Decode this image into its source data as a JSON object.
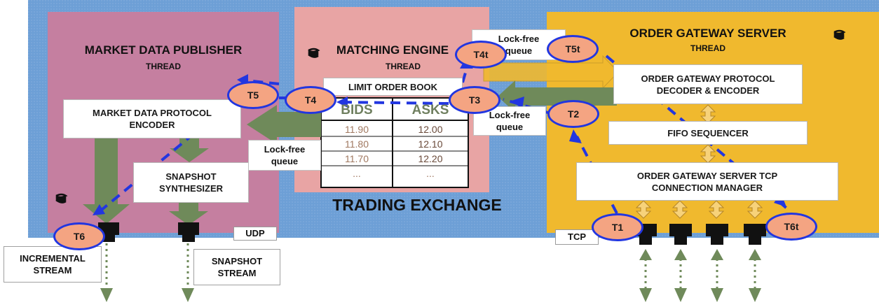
{
  "exchange": {
    "title": "TRADING EXCHANGE",
    "background_color": "#6d9fd6"
  },
  "market_data_publisher": {
    "title": "MARKET DATA PUBLISHER",
    "subtitle": "THREAD",
    "background_color": "#c57fa0",
    "encoder_label": "MARKET DATA PROTOCOL ENCODER",
    "snapshot_label": "SNAPSHOT SYNTHESIZER",
    "udp_label": "UDP",
    "incremental_stream_label": "INCREMENTAL STREAM",
    "snapshot_stream_label": "SNAPSHOT STREAM"
  },
  "matching_engine": {
    "title": "MATCHING ENGINE",
    "subtitle": "THREAD",
    "background_color": "#e8a4a4",
    "order_book_label": "LIMIT ORDER BOOK",
    "order_book": {
      "bids_header": "BIDS",
      "asks_header": "ASKS",
      "bids": [
        "11.90",
        "11.80",
        "11.70",
        "..."
      ],
      "asks": [
        "12.00",
        "12.10",
        "12.20",
        "..."
      ]
    }
  },
  "order_gateway_server": {
    "title": "ORDER GATEWAY SERVER",
    "subtitle": "THREAD",
    "background_color": "#f0b92e",
    "decoder_label": "ORDER GATEWAY PROTOCOL DECODER & ENCODER",
    "fifo_label": "FIFO SEQUENCER",
    "tcp_manager_label": "ORDER GATEWAY SERVER TCP CONNECTION MANAGER",
    "tcp_label": "TCP"
  },
  "queues": {
    "top_right": "Lock-free queue",
    "mid_right": "Lock-free queue",
    "left": "Lock-free queue"
  },
  "flow_steps": [
    "T1",
    "T2",
    "T3",
    "T4",
    "T4t",
    "T5",
    "T5t",
    "T6",
    "T6t"
  ],
  "colors": {
    "flow_line": "#2236e0",
    "step_fill": "#f4a482",
    "data_arrow": "#6f8a5a",
    "port": "#111111"
  }
}
